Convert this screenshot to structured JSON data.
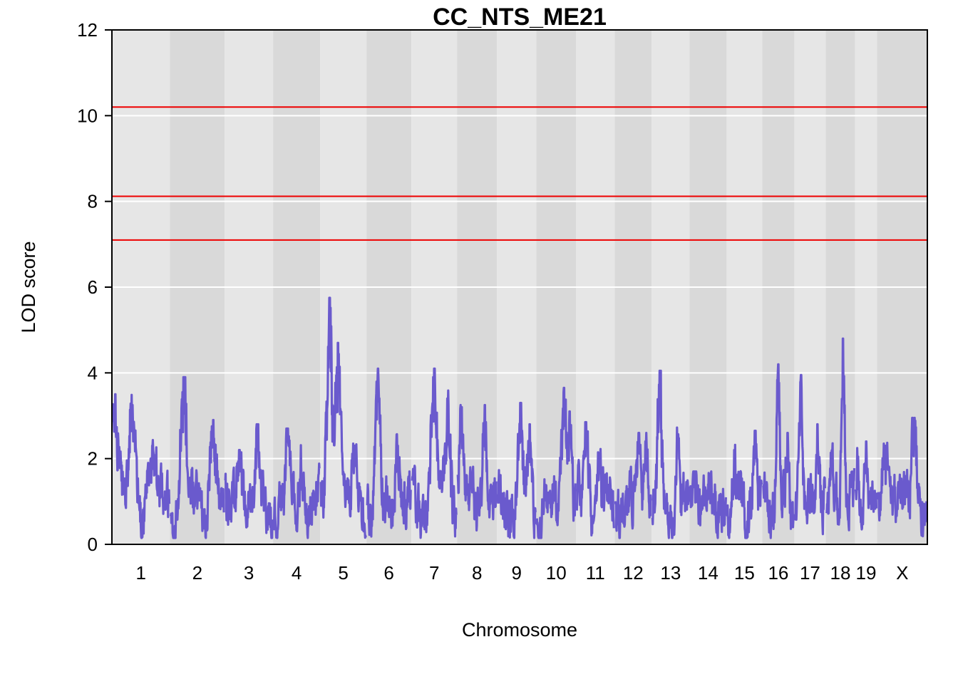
{
  "chart_data": {
    "type": "line",
    "title": "CC_NTS_ME21",
    "xlabel": "Chromosome",
    "ylabel": "LOD score",
    "ylim": [
      0,
      12
    ],
    "yticks": [
      0,
      2,
      4,
      6,
      8,
      10,
      12
    ],
    "grid": true,
    "background_colors": {
      "light": "#e6e6e6",
      "dark": "#d9d9d9"
    },
    "line_color": "#6a5acd",
    "threshold_color": "#ee0000",
    "thresholds": [
      10.2,
      8.12,
      7.1
    ],
    "chromosomes": [
      {
        "label": "1",
        "start": 0,
        "end": 81.5,
        "peaks": [
          [
            3.5,
            0.05
          ],
          [
            3.25,
            0.35
          ],
          [
            2.3,
            0.7
          ]
        ]
      },
      {
        "label": "2",
        "start": 81.5,
        "end": 158,
        "peaks": [
          [
            3.9,
            0.25
          ],
          [
            2.9,
            0.8
          ]
        ]
      },
      {
        "label": "3",
        "start": 158,
        "end": 226,
        "peaks": [
          [
            2.8,
            0.7
          ],
          [
            2.2,
            0.3
          ]
        ]
      },
      {
        "label": "4",
        "start": 226,
        "end": 292,
        "peaks": [
          [
            2.7,
            0.3
          ],
          [
            1.8,
            0.6
          ]
        ]
      },
      {
        "label": "5",
        "start": 292,
        "end": 357,
        "peaks": [
          [
            5.75,
            0.2
          ],
          [
            4.7,
            0.38
          ],
          [
            2.3,
            0.75
          ]
        ]
      },
      {
        "label": "6",
        "start": 357,
        "end": 420,
        "peaks": [
          [
            4.1,
            0.25
          ],
          [
            2.3,
            0.7
          ]
        ]
      },
      {
        "label": "7",
        "start": 420,
        "end": 484,
        "peaks": [
          [
            4.1,
            0.5
          ],
          [
            3.4,
            0.8
          ]
        ]
      },
      {
        "label": "8",
        "start": 484,
        "end": 540,
        "peaks": [
          [
            3.2,
            0.1
          ],
          [
            3.25,
            0.7
          ]
        ]
      },
      {
        "label": "9",
        "start": 540,
        "end": 595,
        "peaks": [
          [
            3.3,
            0.6
          ],
          [
            2.8,
            0.85
          ]
        ]
      },
      {
        "label": "10",
        "start": 595,
        "end": 651,
        "peaks": [
          [
            3.65,
            0.7
          ],
          [
            3.1,
            0.85
          ]
        ]
      },
      {
        "label": "11",
        "start": 651,
        "end": 705,
        "peaks": [
          [
            2.85,
            0.25
          ],
          [
            1.8,
            0.6
          ]
        ]
      },
      {
        "label": "12",
        "start": 705,
        "end": 757,
        "peaks": [
          [
            2.6,
            0.65
          ],
          [
            2.4,
            0.85
          ]
        ]
      },
      {
        "label": "13",
        "start": 757,
        "end": 810,
        "peaks": [
          [
            4.05,
            0.2
          ],
          [
            2.5,
            0.7
          ]
        ]
      },
      {
        "label": "14",
        "start": 810,
        "end": 862,
        "peaks": [
          [
            1.7,
            0.15
          ],
          [
            1.4,
            0.5
          ]
        ]
      },
      {
        "label": "15",
        "start": 862,
        "end": 912,
        "peaks": [
          [
            2.2,
            0.2
          ],
          [
            2.65,
            0.8
          ]
        ]
      },
      {
        "label": "16",
        "start": 912,
        "end": 957,
        "peaks": [
          [
            4.2,
            0.5
          ],
          [
            2.6,
            0.8
          ]
        ]
      },
      {
        "label": "17",
        "start": 957,
        "end": 1001,
        "peaks": [
          [
            3.95,
            0.2
          ],
          [
            2.8,
            0.75
          ]
        ]
      },
      {
        "label": "18",
        "start": 1001,
        "end": 1042,
        "peaks": [
          [
            4.8,
            0.6
          ],
          [
            2.2,
            0.2
          ]
        ]
      },
      {
        "label": "19",
        "start": 1042,
        "end": 1073,
        "peaks": [
          [
            2.4,
            0.5
          ],
          [
            2.0,
            0.1
          ]
        ]
      },
      {
        "label": "X",
        "start": 1073,
        "end": 1143.5,
        "peaks": [
          [
            2.3,
            0.15
          ],
          [
            2.95,
            0.75
          ]
        ]
      }
    ]
  }
}
